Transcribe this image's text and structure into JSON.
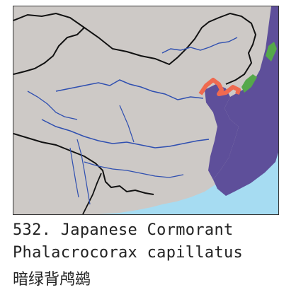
{
  "map": {
    "colors": {
      "land": "#cdc9c6",
      "sea": "#a6dcf2",
      "range_resident": "#5e4f9a",
      "range_breeding": "#55a84a",
      "range_winter": "#ef6a50",
      "rivers": "#2f4fb0",
      "borders": "#111111"
    },
    "legend_note": ""
  },
  "caption": {
    "number_and_english": "532. Japanese Cormorant",
    "scientific_name": "Phalacrocorax capillatus",
    "chinese_name": "暗绿背鸬鹚"
  }
}
